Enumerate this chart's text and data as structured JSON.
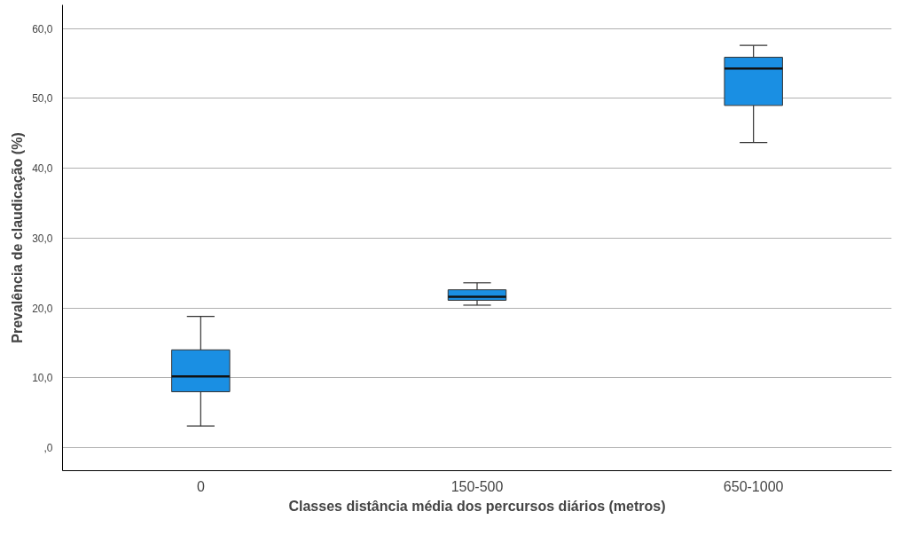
{
  "chart_data": {
    "type": "box",
    "xlabel": "Classes distância média dos percursos diários (metros)",
    "ylabel": "Prevalência de claudicação (%)",
    "categories": [
      "0",
      "150-500",
      "650-1000"
    ],
    "boxes": [
      {
        "low": 3.1,
        "q1": 8.0,
        "median": 10.2,
        "q3": 14.0,
        "high": 18.8
      },
      {
        "low": 20.4,
        "q1": 21.1,
        "median": 21.6,
        "q3": 22.6,
        "high": 23.6
      },
      {
        "low": 43.7,
        "q1": 49.0,
        "median": 54.3,
        "q3": 55.9,
        "high": 57.6
      }
    ],
    "color": "#1a8fe3",
    "ylim": [
      -3.3,
      63.4
    ],
    "yticks": [
      {
        "value": 0,
        "label": ",0"
      },
      {
        "value": 10,
        "label": "10,0"
      },
      {
        "value": 20,
        "label": "20,0"
      },
      {
        "value": 30,
        "label": "30,0"
      },
      {
        "value": 40,
        "label": "40,0"
      },
      {
        "value": 50,
        "label": "50,0"
      },
      {
        "value": 60,
        "label": "60,0"
      }
    ],
    "grid": "y"
  }
}
